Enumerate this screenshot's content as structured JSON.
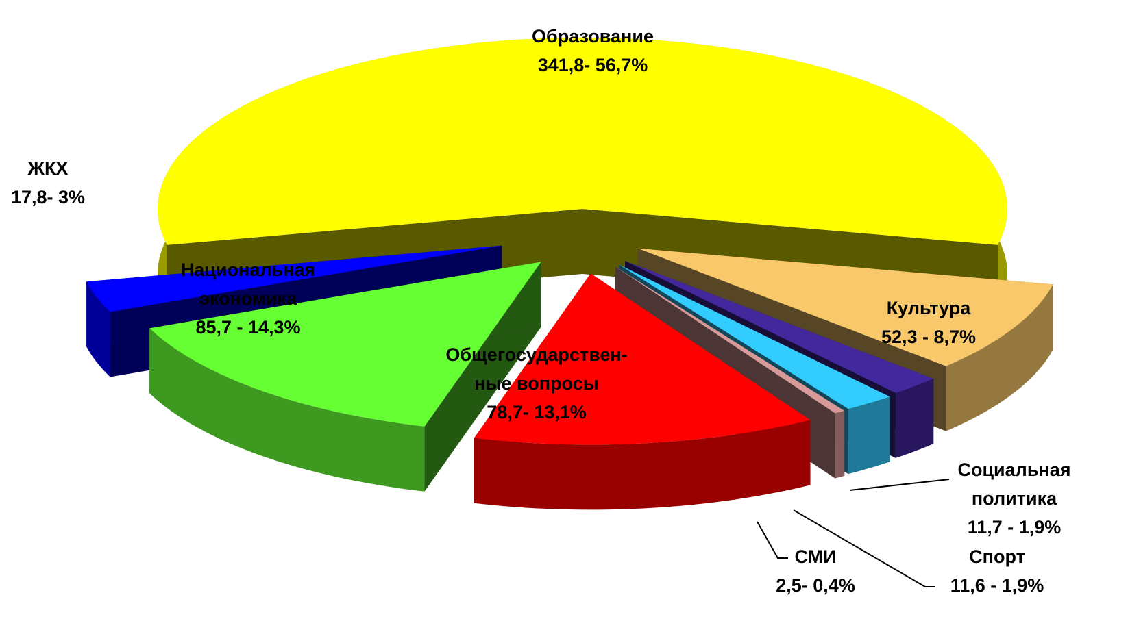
{
  "chart_data": {
    "type": "pie3d",
    "categories": [
      "Образование",
      "Культура",
      "Социальная\nполитика",
      "Спорт",
      "СМИ",
      "Общегосударствен-\nные вопросы",
      "Национальная\nэкономика",
      "ЖКХ"
    ],
    "values": [
      341.8,
      52.3,
      11.7,
      11.6,
      2.5,
      78.7,
      85.7,
      17.8
    ],
    "value_labels": [
      "341,8- 56,7%",
      "52,3 - 8,7%",
      "11,7 - 1,9%",
      "11,6 -  1,9%",
      "2,5- 0,4%",
      "78,7- 13,1%",
      "85,7 - 14,3%",
      "17,8- 3%"
    ],
    "colors": [
      "#ffff00",
      "#f9c86a",
      "#43279c",
      "#33ccff",
      "#d89a98",
      "#ff0000",
      "#66ff33",
      "#0000ff"
    ]
  }
}
